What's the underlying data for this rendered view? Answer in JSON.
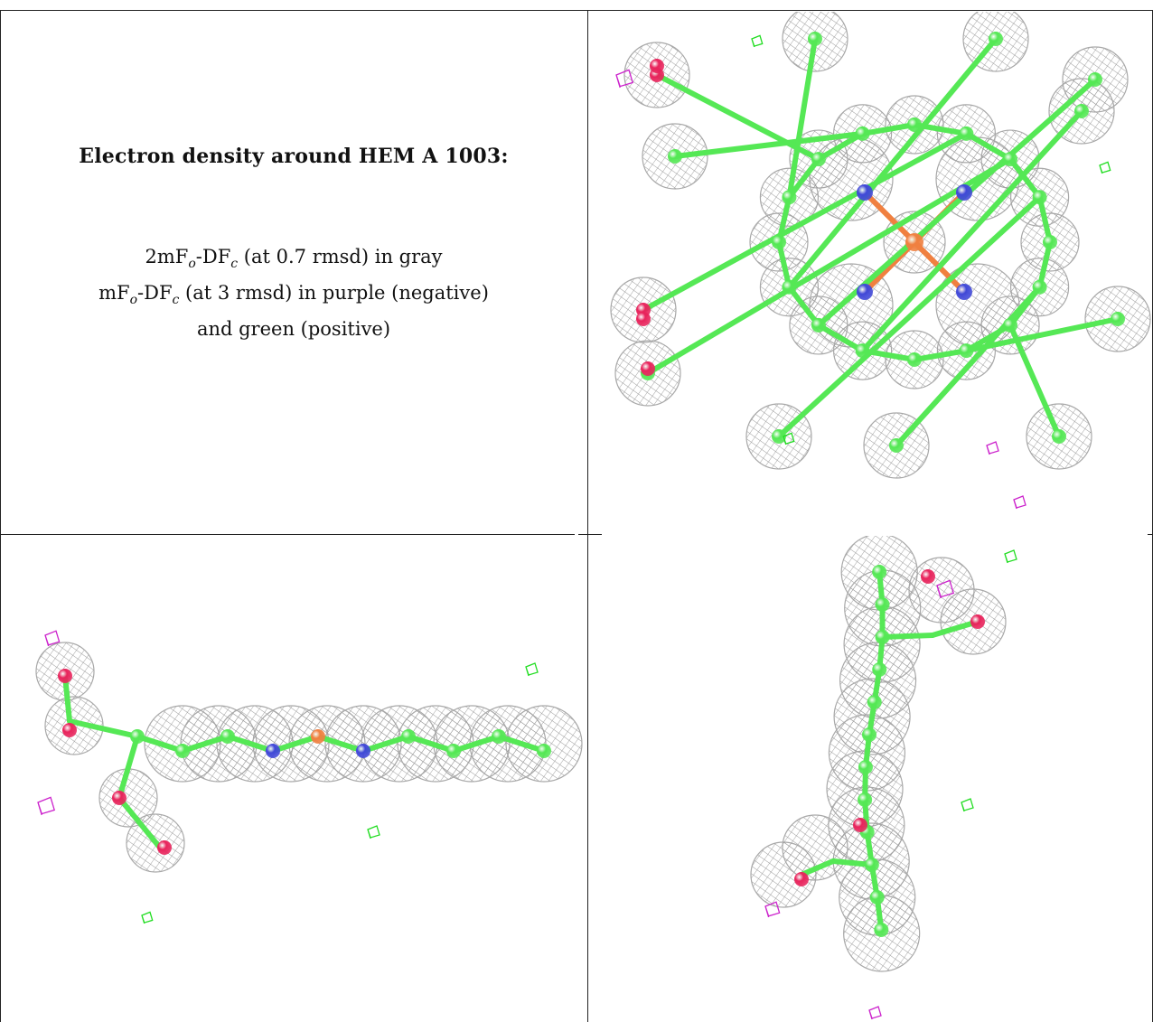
{
  "caption": {
    "title": "Electron density around HEM A 1003:",
    "line1": {
      "pre": "2mF",
      "sub1": "o",
      "mid": "-DF",
      "sub2": "c",
      "post": " (at 0.7 rmsd) in gray"
    },
    "line2": {
      "pre": "mF",
      "sub1": "o",
      "mid": "-DF",
      "sub2": "c",
      "post": " (at 3 rmsd) in purple (negative)"
    },
    "line3": "and green (positive)"
  },
  "colors": {
    "mesh_gray": "#9a9a9a",
    "positive_green": "#22dd22",
    "negative_purple": "#cc22cc",
    "carbon": "#55e855",
    "nitrogen": "#4048d8",
    "oxygen": "#e8245c",
    "iron": "#f08040"
  },
  "panels": [
    {
      "name": "heme-top-view"
    },
    {
      "name": "heme-edge-view"
    },
    {
      "name": "heme-side-view"
    }
  ]
}
